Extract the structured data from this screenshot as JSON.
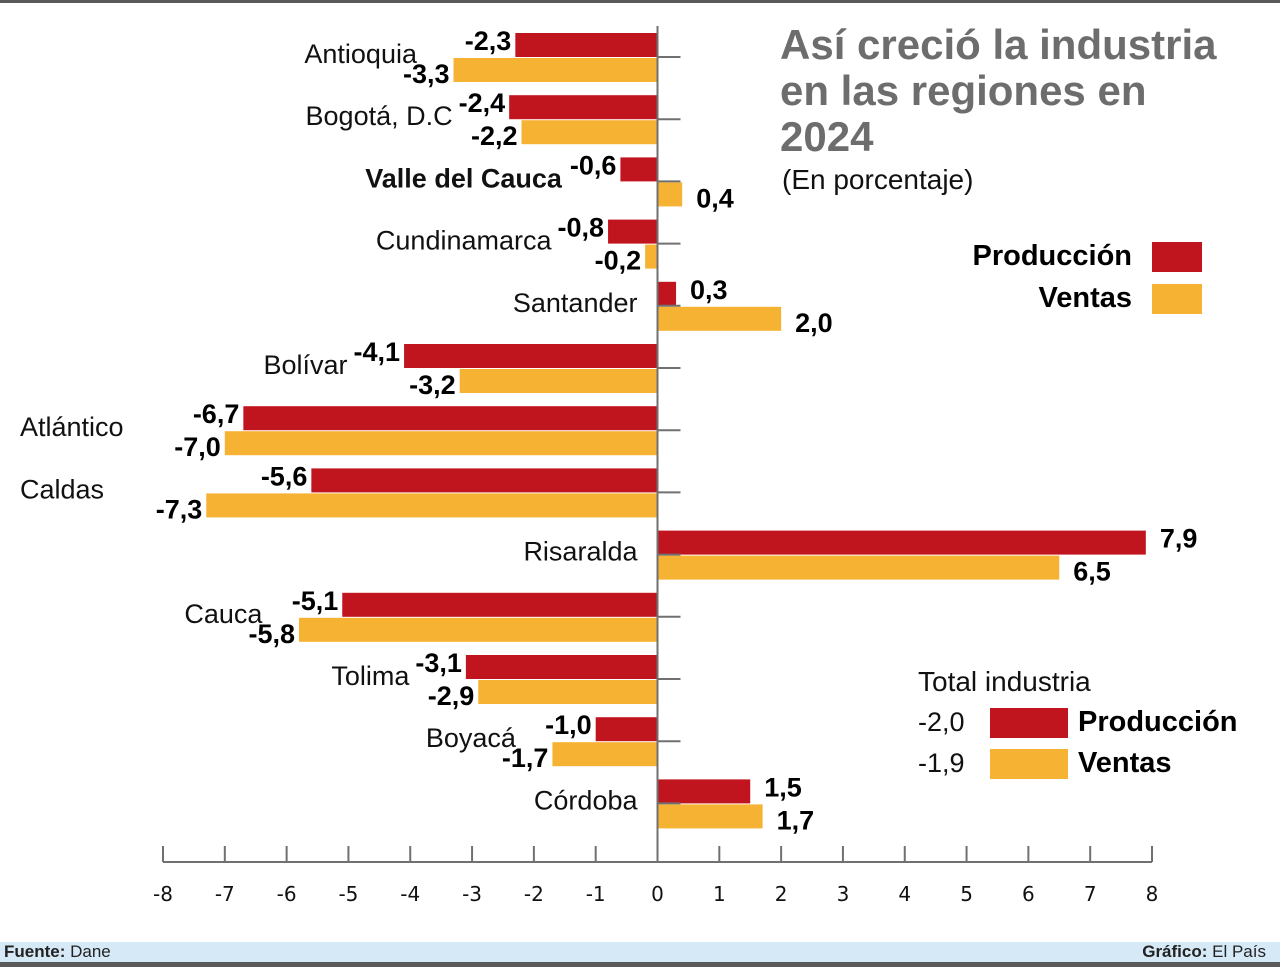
{
  "title": "Así creció la industria en las regiones en 2024",
  "subtitle": "(En porcentaje)",
  "colors": {
    "produccion": "#c0151f",
    "ventas": "#f6b233",
    "axis": "#707070"
  },
  "legend": [
    {
      "name": "Producción",
      "color": "#c0151f"
    },
    {
      "name": "Ventas",
      "color": "#f6b233"
    }
  ],
  "total": {
    "title": "Total industria",
    "rows": [
      {
        "value": "-2,0",
        "name": "Producción",
        "color": "#c0151f"
      },
      {
        "value": "-1,9",
        "name": "Ventas",
        "color": "#f6b233"
      }
    ]
  },
  "footer": {
    "source_label": "Fuente:",
    "source_value": " Dane",
    "credit_label": "Gráfico:",
    "credit_value": " El País"
  },
  "chart_data": {
    "type": "bar",
    "orientation": "horizontal",
    "title": "Así creció la industria en las regiones en 2024",
    "subtitle": "(En porcentaje)",
    "xlabel": "",
    "ylabel": "",
    "xlim": [
      -8,
      8
    ],
    "xticks": [
      -8,
      -7,
      -6,
      -5,
      -4,
      -3,
      -2,
      -1,
      0,
      1,
      2,
      3,
      4,
      5,
      6,
      7,
      8
    ],
    "grid": false,
    "legend_position": "top-right",
    "categories": [
      "Antioquia",
      "Bogotá, D.C",
      "Valle del Cauca",
      "Cundinamarca",
      "Santander",
      "Bolívar",
      "Atlántico",
      "Caldas",
      "Risaralda",
      "Cauca",
      "Tolima",
      "Boyacá",
      "Córdoba"
    ],
    "bold_categories": [
      "Valle del Cauca"
    ],
    "series": [
      {
        "name": "Producción",
        "color": "#c0151f",
        "values": [
          -2.3,
          -2.4,
          -0.6,
          -0.8,
          0.3,
          -4.1,
          -6.7,
          -5.6,
          7.9,
          -5.1,
          -3.1,
          -1.0,
          1.5
        ],
        "labels": [
          "-2,3",
          "-2,4",
          "-0,6",
          "-0,8",
          "0,3",
          "-4,1",
          "-6,7",
          "-5,6",
          "7,9",
          "-5,1",
          "-3,1",
          "-1,0",
          "1,5"
        ]
      },
      {
        "name": "Ventas",
        "color": "#f6b233",
        "values": [
          -3.3,
          -2.2,
          0.4,
          -0.2,
          2.0,
          -3.2,
          -7.0,
          -7.3,
          6.5,
          -5.8,
          -2.9,
          -1.7,
          1.7
        ],
        "labels": [
          "-3,3",
          "-2,2",
          "0,4",
          "-0,2",
          "2,0",
          "-3,2",
          "-7,0",
          "-7,3",
          "6,5",
          "-5,8",
          "-2,9",
          "-1,7",
          "1,7"
        ]
      }
    ],
    "totals": {
      "Producción": -2.0,
      "Ventas": -1.9
    }
  }
}
